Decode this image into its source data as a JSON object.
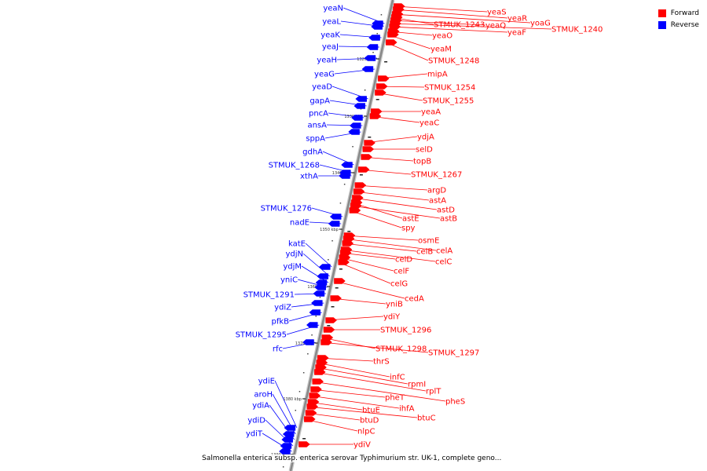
{
  "caption": "Salmonella enterica subsp. enterica serovar Typhimurium str. UK-1, complete geno...",
  "legend": {
    "forward": {
      "label": "Forward",
      "color": "#ff0000"
    },
    "reverse": {
      "label": "Reverse",
      "color": "#0000ff"
    }
  },
  "colors": {
    "forward": "#ff0000",
    "reverse": "#0000ff",
    "backbone": "#888888"
  },
  "ticks": [
    "1320 kbp",
    "1330 kbp",
    "1340 kbp",
    "1350 kbp",
    "1360 kbp",
    "1370 kbp",
    "1380 kbp",
    "1390 kbp"
  ],
  "reverse_genes": [
    "yeaN",
    "yeaL",
    "yeaK",
    "yeaJ",
    "yeaH",
    "yeaG",
    "yeaD",
    "gapA",
    "pncA",
    "ansA",
    "sppA",
    "gdhA",
    "STMUK_1268",
    "xthA",
    "STMUK_1276",
    "nadE",
    "katE",
    "ydjN",
    "ydjM",
    "yniC",
    "STMUK_1291",
    "ydiZ",
    "pfkB",
    "STMUK_1295",
    "rfc",
    "ydiE",
    "aroH",
    "ydiA",
    "ydiD",
    "ydiT"
  ],
  "forward_genes": [
    "yeaS",
    "yeaR",
    "yoaG",
    "STMUK_1243",
    "yeaQ",
    "STMUK_1240",
    "yeaF",
    "yeaO",
    "yeaM",
    "STMUK_1248",
    "mipA",
    "STMUK_1254",
    "STMUK_1255",
    "yeaA",
    "yeaC",
    "ydjA",
    "selD",
    "topB",
    "STMUK_1267",
    "argD",
    "astA",
    "astD",
    "astE",
    "astB",
    "spy",
    "osmE",
    "celA",
    "celB",
    "celC",
    "celD",
    "celF",
    "celG",
    "cedA",
    "yniB",
    "ydiY",
    "STMUK_1296",
    "STMUK_1298",
    "STMUK_1297",
    "thrS",
    "infC",
    "rpmI",
    "rplT",
    "pheS",
    "pheT",
    "ihfA",
    "btuE",
    "btuC",
    "btuD",
    "nlpC",
    "ydiV"
  ]
}
